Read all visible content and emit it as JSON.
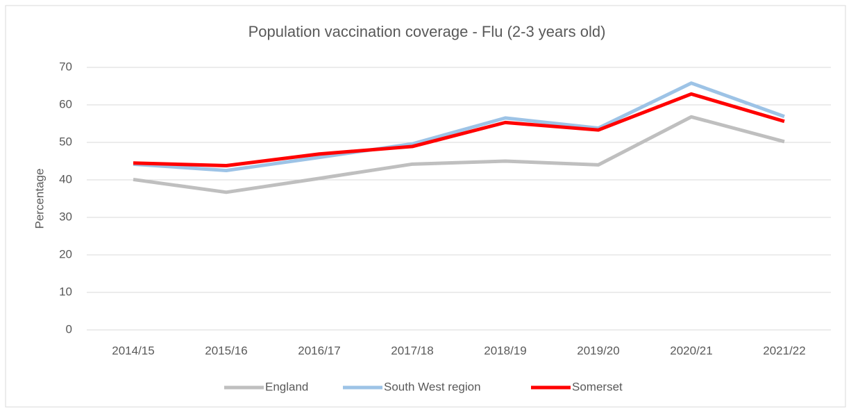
{
  "chart_data": {
    "type": "line",
    "title": "Population vaccination coverage - Flu (2-3 years old)",
    "y_label": "Percentage",
    "categories": [
      "2014/15",
      "2015/16",
      "2016/17",
      "2017/18",
      "2018/19",
      "2019/20",
      "2020/21",
      "2021/22"
    ],
    "series": [
      {
        "name": "England",
        "color": "#bfbfbf",
        "values": [
          40.1,
          36.7,
          40.4,
          44.2,
          45.0,
          44.0,
          56.8,
          50.2
        ]
      },
      {
        "name": "South West region",
        "color": "#9dc3e6",
        "values": [
          44.2,
          42.5,
          46.0,
          49.6,
          56.5,
          53.8,
          65.8,
          56.9
        ]
      },
      {
        "name": "Somerset",
        "color": "#ff0000",
        "values": [
          44.5,
          43.8,
          46.9,
          48.9,
          55.3,
          53.3,
          62.9,
          55.6
        ]
      }
    ],
    "ylim": [
      0,
      70
    ],
    "yticks": [
      0,
      10,
      20,
      30,
      40,
      50,
      60,
      70
    ],
    "grid": true,
    "legend": "bottom"
  }
}
